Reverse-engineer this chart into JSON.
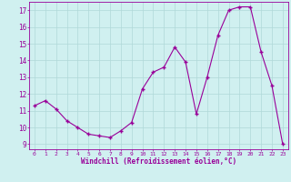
{
  "x": [
    0,
    1,
    2,
    3,
    4,
    5,
    6,
    7,
    8,
    9,
    10,
    11,
    12,
    13,
    14,
    15,
    16,
    17,
    18,
    19,
    20,
    21,
    22,
    23
  ],
  "y": [
    11.3,
    11.6,
    11.1,
    10.4,
    10.0,
    9.6,
    9.5,
    9.4,
    9.8,
    10.3,
    12.3,
    13.3,
    13.6,
    14.8,
    13.9,
    10.8,
    13.0,
    15.5,
    17.0,
    17.2,
    17.2,
    14.5,
    12.5,
    9.0
  ],
  "line_color": "#990099",
  "marker_color": "#990099",
  "bg_color": "#d0f0f0",
  "grid_color": "#b0d8d8",
  "xlabel": "Windchill (Refroidissement éolien,°C)",
  "xlabel_color": "#990099",
  "tick_color": "#990099",
  "spine_color": "#990099",
  "ylim": [
    8.7,
    17.5
  ],
  "yticks": [
    9,
    10,
    11,
    12,
    13,
    14,
    15,
    16,
    17
  ],
  "xlim": [
    -0.5,
    23.5
  ],
  "xticks": [
    0,
    1,
    2,
    3,
    4,
    5,
    6,
    7,
    8,
    9,
    10,
    11,
    12,
    13,
    14,
    15,
    16,
    17,
    18,
    19,
    20,
    21,
    22,
    23
  ]
}
